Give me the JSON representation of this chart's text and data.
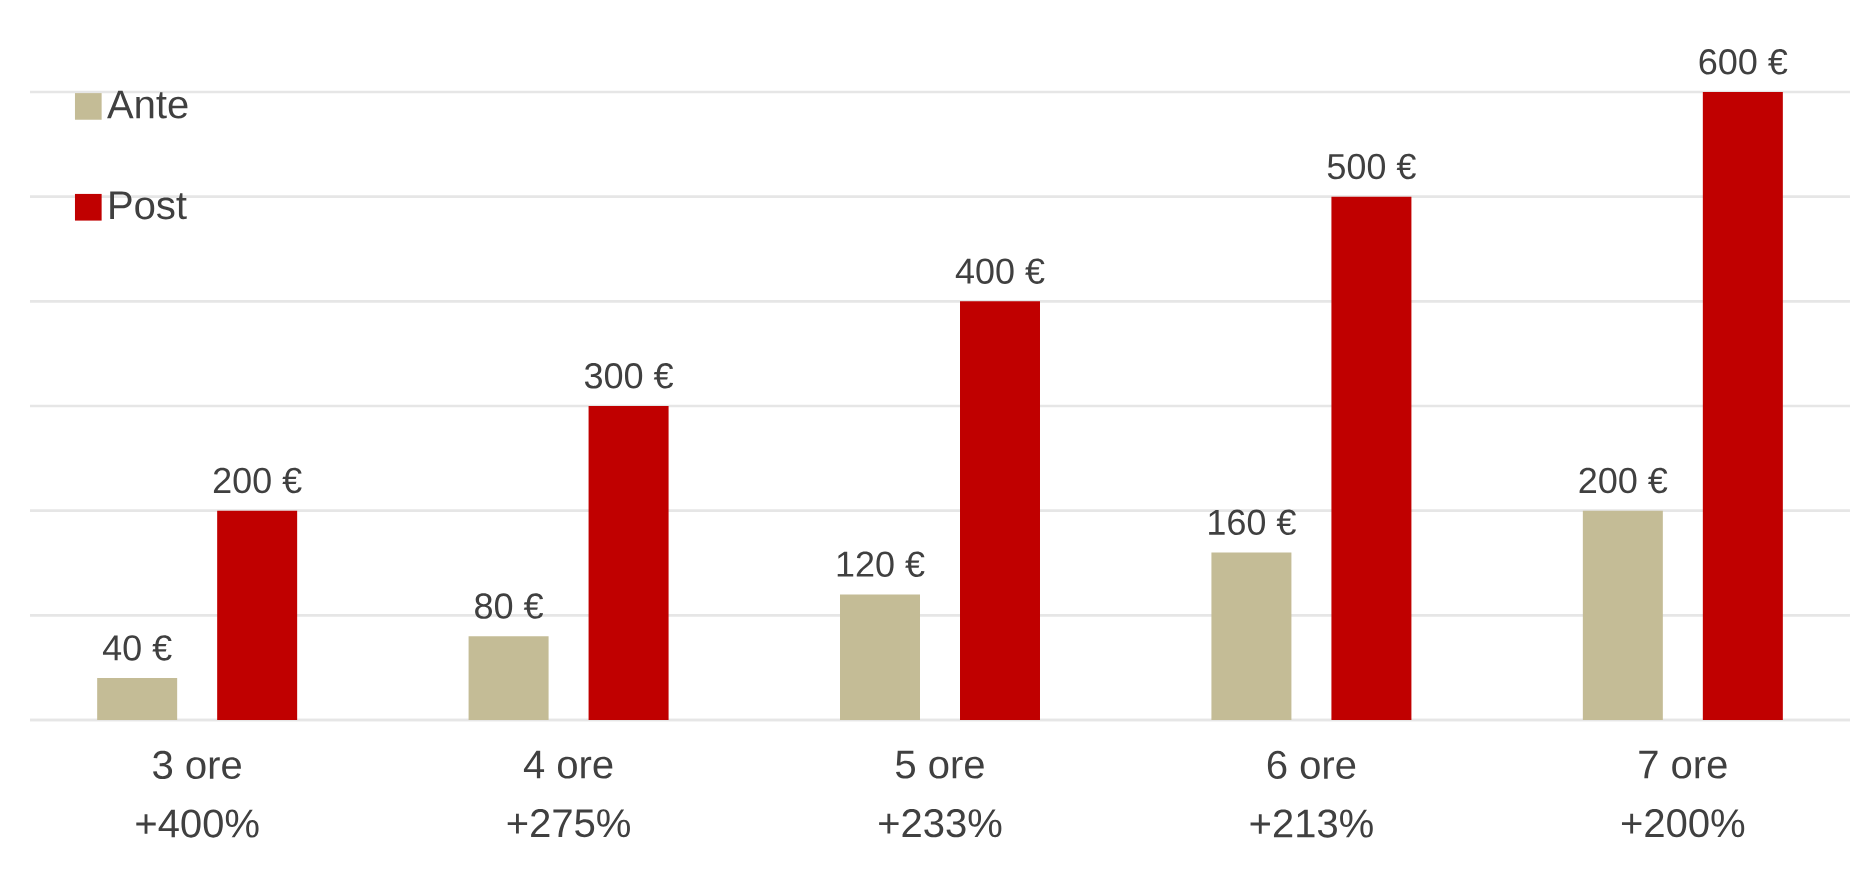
{
  "chart_data": {
    "type": "bar",
    "categories": [
      "3 ore\n+400%",
      "4 ore\n+275%",
      "5 ore\n+233%",
      "6 ore\n+213%",
      "7 ore\n+200%"
    ],
    "series": [
      {
        "name": "Ante",
        "color": "#c4bc96",
        "values": [
          40,
          80,
          120,
          160,
          200
        ],
        "value_labels": [
          "40 €",
          "80 €",
          "120 €",
          "160 €",
          "200 €"
        ]
      },
      {
        "name": "Post",
        "color": "#c00000",
        "values": [
          200,
          300,
          400,
          500,
          600
        ],
        "value_labels": [
          "200 €",
          "300 €",
          "400 €",
          "500 €",
          "600 €"
        ]
      }
    ],
    "ylim": [
      0,
      600
    ],
    "yticks": [
      {
        "value": 0,
        "label": null
      },
      {
        "value": 100,
        "label": null
      },
      {
        "value": 200,
        "label": null
      },
      {
        "value": 300,
        "label": null
      },
      {
        "value": 400,
        "label": null
      },
      {
        "value": 500,
        "label": null
      },
      {
        "value": 600,
        "label": null
      }
    ],
    "grid": "y",
    "legend": "top left",
    "tick_labels": "x"
  }
}
